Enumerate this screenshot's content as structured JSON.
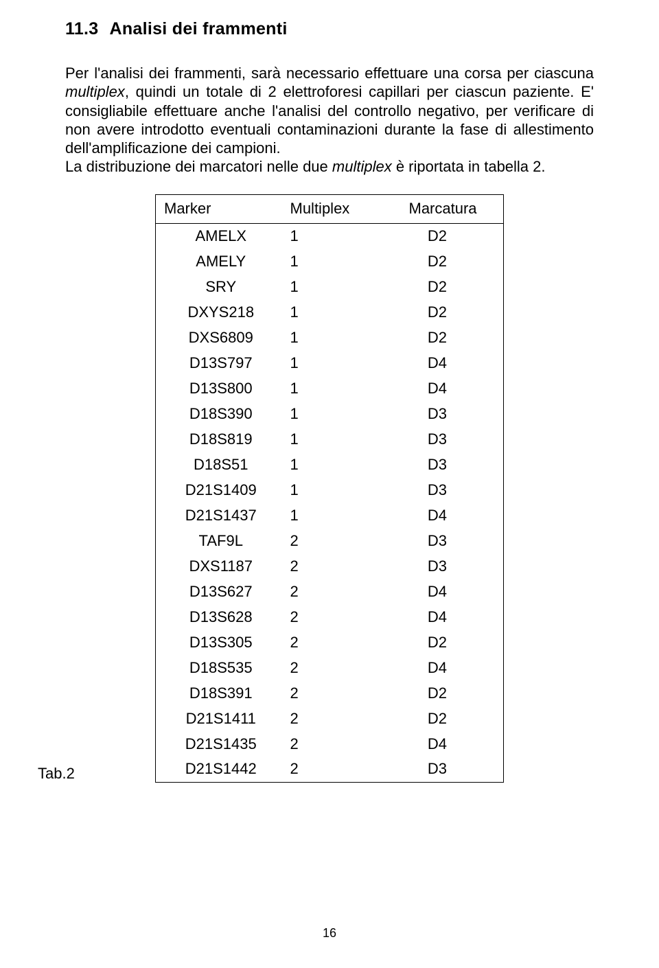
{
  "heading_number": "11.3",
  "heading_text": "Analisi dei frammenti",
  "paragraph1_pre": "Per l'analisi dei frammenti, sarà necessario effettuare una corsa per ciascuna ",
  "paragraph1_ital": "multiplex",
  "paragraph1_post": ", quindi un totale di 2 elettroforesi capillari per ciascun paziente.",
  "paragraph2": "E' consigliabile effettuare anche l'analisi del controllo negativo, per verificare di non avere introdotto eventuali contaminazioni durante la fase di allestimento dell'amplificazione dei campioni.",
  "paragraph3_pre": "La distribuzione dei marcatori nelle due ",
  "paragraph3_ital": "multiplex",
  "paragraph3_post": " è riportata in tabella 2.",
  "table": {
    "headers": [
      "Marker",
      "Multiplex",
      "Marcatura"
    ],
    "rows": [
      {
        "marker": "AMELX",
        "multiplex": "1",
        "marc": "D2"
      },
      {
        "marker": "AMELY",
        "multiplex": "1",
        "marc": "D2"
      },
      {
        "marker": "SRY",
        "multiplex": "1",
        "marc": "D2"
      },
      {
        "marker": "DXYS218",
        "multiplex": "1",
        "marc": "D2"
      },
      {
        "marker": "DXS6809",
        "multiplex": "1",
        "marc": "D2"
      },
      {
        "marker": "D13S797",
        "multiplex": "1",
        "marc": "D4"
      },
      {
        "marker": "D13S800",
        "multiplex": "1",
        "marc": "D4"
      },
      {
        "marker": "D18S390",
        "multiplex": "1",
        "marc": "D3"
      },
      {
        "marker": "D18S819",
        "multiplex": "1",
        "marc": "D3"
      },
      {
        "marker": "D18S51",
        "multiplex": "1",
        "marc": "D3"
      },
      {
        "marker": "D21S1409",
        "multiplex": "1",
        "marc": "D3"
      },
      {
        "marker": "D21S1437",
        "multiplex": "1",
        "marc": "D4"
      },
      {
        "marker": "TAF9L",
        "multiplex": "2",
        "marc": "D3"
      },
      {
        "marker": "DXS1187",
        "multiplex": "2",
        "marc": "D3"
      },
      {
        "marker": "D13S627",
        "multiplex": "2",
        "marc": "D4"
      },
      {
        "marker": "D13S628",
        "multiplex": "2",
        "marc": "D4"
      },
      {
        "marker": "D13S305",
        "multiplex": "2",
        "marc": "D2"
      },
      {
        "marker": "D18S535",
        "multiplex": "2",
        "marc": "D4"
      },
      {
        "marker": "D18S391",
        "multiplex": "2",
        "marc": "D2"
      },
      {
        "marker": "D21S1411",
        "multiplex": "2",
        "marc": "D2"
      },
      {
        "marker": "D21S1435",
        "multiplex": "2",
        "marc": "D4"
      },
      {
        "marker": "D21S1442",
        "multiplex": "2",
        "marc": "D3"
      }
    ]
  },
  "table_label": "Tab.2",
  "page_number": "16",
  "colors": {
    "text": "#000000",
    "background": "#ffffff",
    "border": "#000000"
  },
  "fonts": {
    "body_family": "Arial",
    "body_size_pt": 16,
    "heading_size_pt": 18,
    "heading_weight": "bold"
  }
}
